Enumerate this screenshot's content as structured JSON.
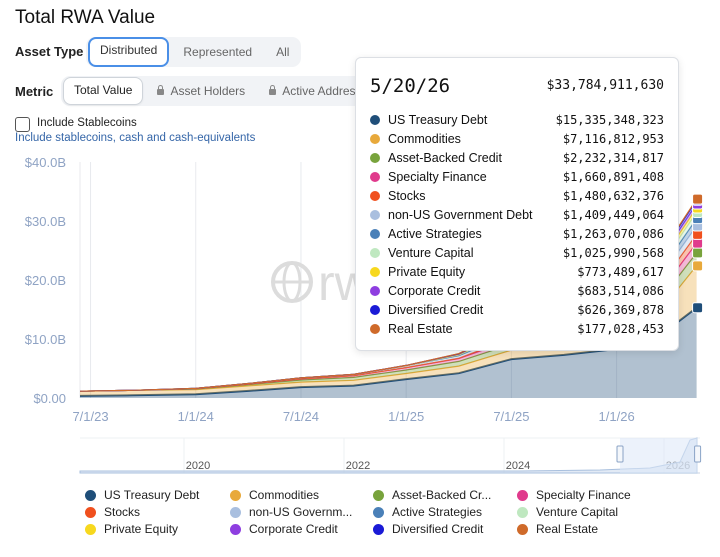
{
  "page": {
    "title": "Total RWA Value"
  },
  "asset_type": {
    "label": "Asset Type",
    "options": [
      "Distributed",
      "Represented",
      "All"
    ],
    "selected": "Distributed"
  },
  "metric": {
    "label": "Metric",
    "options": [
      "Total Value",
      "Asset Holders",
      "Active Addresses"
    ],
    "selected": "Total Value",
    "locked": [
      "Asset Holders",
      "Active Addresses"
    ]
  },
  "stablecoins": {
    "label": "Include Stablecoins",
    "description": "Include stablecoins, cash and cash-equivalents",
    "checked": false
  },
  "watermark": "rwa",
  "chart_data": {
    "type": "area",
    "stacked": true,
    "y_ticks": [
      "$0.00",
      "$10.0B",
      "$20.0B",
      "$30.0B",
      "$40.0B"
    ],
    "ylim": [
      0,
      40
    ],
    "x_ticks": [
      {
        "label": "7/1/23",
        "t": 2023.5
      },
      {
        "label": "1/1/24",
        "t": 2024.0
      },
      {
        "label": "7/1/24",
        "t": 2024.5
      },
      {
        "label": "1/1/25",
        "t": 2025.0
      },
      {
        "label": "7/1/25",
        "t": 2025.5
      },
      {
        "label": "1/1/26",
        "t": 2026.0
      }
    ],
    "xlim": [
      2023.45,
      2026.42
    ],
    "navigator": {
      "labels": [
        "2020",
        "2022",
        "2024",
        "2026"
      ],
      "range": [
        2025.45,
        2026.42
      ]
    },
    "hover_date": "5/20/26",
    "total": "$33,784,911,630",
    "grid": "vertical",
    "series": [
      {
        "name": "US Treasury Debt",
        "color": "#1f4e79",
        "tooltip": "$15,335,348,323",
        "values": [
          [
            2023.45,
            0.35
          ],
          [
            2023.7,
            0.45
          ],
          [
            2024.0,
            0.62
          ],
          [
            2024.25,
            1.2
          ],
          [
            2024.5,
            1.85
          ],
          [
            2024.75,
            2.1
          ],
          [
            2025.0,
            3.2
          ],
          [
            2025.25,
            4.2
          ],
          [
            2025.5,
            6.6
          ],
          [
            2025.75,
            7.3
          ],
          [
            2026.0,
            8.3
          ],
          [
            2026.2,
            10.4
          ],
          [
            2026.38,
            15.3
          ]
        ]
      },
      {
        "name": "Commodities",
        "color": "#e8a93b",
        "tooltip": "$7,116,812,953",
        "values": [
          [
            2023.45,
            0.8
          ],
          [
            2023.7,
            0.85
          ],
          [
            2024.0,
            0.8
          ],
          [
            2024.25,
            0.85
          ],
          [
            2024.5,
            0.85
          ],
          [
            2024.75,
            0.9
          ],
          [
            2025.0,
            0.95
          ],
          [
            2025.25,
            1.2
          ],
          [
            2025.5,
            1.5
          ],
          [
            2025.75,
            2.2
          ],
          [
            2026.0,
            3.0
          ],
          [
            2026.2,
            4.0
          ],
          [
            2026.38,
            7.1
          ]
        ]
      },
      {
        "name": "Asset-Backed Credit",
        "color": "#78a33c",
        "tooltip": "$2,232,314,817",
        "values": [
          [
            2023.45,
            0.0
          ],
          [
            2023.7,
            0.0
          ],
          [
            2024.0,
            0.1
          ],
          [
            2024.25,
            0.2
          ],
          [
            2024.5,
            0.35
          ],
          [
            2024.75,
            0.5
          ],
          [
            2025.0,
            0.6
          ],
          [
            2025.25,
            0.8
          ],
          [
            2025.5,
            1.0
          ],
          [
            2025.75,
            1.3
          ],
          [
            2026.0,
            1.6
          ],
          [
            2026.2,
            1.9
          ],
          [
            2026.38,
            2.2
          ]
        ]
      },
      {
        "name": "Specialty Finance",
        "color": "#e03a8c",
        "tooltip": "$1,660,891,408",
        "values": [
          [
            2023.45,
            0.0
          ],
          [
            2023.7,
            0.0
          ],
          [
            2024.0,
            0.05
          ],
          [
            2024.25,
            0.1
          ],
          [
            2024.5,
            0.2
          ],
          [
            2024.75,
            0.3
          ],
          [
            2025.0,
            0.4
          ],
          [
            2025.25,
            0.5
          ],
          [
            2025.5,
            0.7
          ],
          [
            2025.75,
            1.0
          ],
          [
            2026.0,
            1.2
          ],
          [
            2026.2,
            1.4
          ],
          [
            2026.38,
            1.66
          ]
        ]
      },
      {
        "name": "Stocks",
        "color": "#f0501e",
        "tooltip": "$1,480,632,376",
        "values": [
          [
            2023.45,
            0.0
          ],
          [
            2023.7,
            0.0
          ],
          [
            2024.0,
            0.0
          ],
          [
            2024.25,
            0.0
          ],
          [
            2024.5,
            0.0
          ],
          [
            2024.75,
            0.0
          ],
          [
            2025.0,
            0.02
          ],
          [
            2025.25,
            0.05
          ],
          [
            2025.5,
            0.3
          ],
          [
            2025.75,
            0.7
          ],
          [
            2026.0,
            0.9
          ],
          [
            2026.2,
            1.2
          ],
          [
            2026.38,
            1.48
          ]
        ]
      },
      {
        "name": "non-US Government Debt",
        "color": "#a9bfdf",
        "tooltip": "$1,409,449,064",
        "values": [
          [
            2023.45,
            0.0
          ],
          [
            2023.7,
            0.0
          ],
          [
            2024.0,
            0.05
          ],
          [
            2024.25,
            0.1
          ],
          [
            2024.5,
            0.15
          ],
          [
            2024.75,
            0.2
          ],
          [
            2025.0,
            0.3
          ],
          [
            2025.25,
            0.4
          ],
          [
            2025.5,
            0.6
          ],
          [
            2025.75,
            0.8
          ],
          [
            2026.0,
            1.0
          ],
          [
            2026.2,
            1.2
          ],
          [
            2026.38,
            1.41
          ]
        ]
      },
      {
        "name": "Active Strategies",
        "color": "#4a80b8",
        "tooltip": "$1,263,070,086",
        "values": [
          [
            2023.45,
            0.0
          ],
          [
            2023.7,
            0.0
          ],
          [
            2024.0,
            0.0
          ],
          [
            2024.25,
            0.0
          ],
          [
            2024.5,
            0.0
          ],
          [
            2024.75,
            0.0
          ],
          [
            2025.0,
            0.0
          ],
          [
            2025.25,
            0.05
          ],
          [
            2025.5,
            0.2
          ],
          [
            2025.75,
            0.5
          ],
          [
            2026.0,
            0.8
          ],
          [
            2026.2,
            1.0
          ],
          [
            2026.38,
            1.26
          ]
        ]
      },
      {
        "name": "Venture Capital",
        "color": "#bfe8c0",
        "tooltip": "$1,025,990,568",
        "values": [
          [
            2023.45,
            0.0
          ],
          [
            2023.7,
            0.0
          ],
          [
            2024.0,
            0.0
          ],
          [
            2024.25,
            0.0
          ],
          [
            2024.5,
            0.0
          ],
          [
            2024.75,
            0.0
          ],
          [
            2025.0,
            0.0
          ],
          [
            2025.25,
            0.1
          ],
          [
            2025.5,
            0.3
          ],
          [
            2025.75,
            0.6
          ],
          [
            2026.0,
            0.8
          ],
          [
            2026.2,
            0.9
          ],
          [
            2026.38,
            1.03
          ]
        ]
      },
      {
        "name": "Private Equity",
        "color": "#f7d81e",
        "tooltip": "$773,489,617",
        "values": [
          [
            2023.45,
            0.0
          ],
          [
            2023.7,
            0.0
          ],
          [
            2024.0,
            0.0
          ],
          [
            2024.25,
            0.0
          ],
          [
            2024.5,
            0.0
          ],
          [
            2024.75,
            0.0
          ],
          [
            2025.0,
            0.0
          ],
          [
            2025.25,
            0.05
          ],
          [
            2025.5,
            0.2
          ],
          [
            2025.75,
            0.4
          ],
          [
            2026.0,
            0.55
          ],
          [
            2026.2,
            0.65
          ],
          [
            2026.38,
            0.77
          ]
        ]
      },
      {
        "name": "Corporate Credit",
        "color": "#8e3ee0",
        "tooltip": "$683,514,086",
        "values": [
          [
            2023.45,
            0.0
          ],
          [
            2023.7,
            0.0
          ],
          [
            2024.0,
            0.0
          ],
          [
            2024.25,
            0.0
          ],
          [
            2024.5,
            0.0
          ],
          [
            2024.75,
            0.0
          ],
          [
            2025.0,
            0.05
          ],
          [
            2025.25,
            0.1
          ],
          [
            2025.5,
            0.2
          ],
          [
            2025.75,
            0.35
          ],
          [
            2026.0,
            0.5
          ],
          [
            2026.2,
            0.6
          ],
          [
            2026.38,
            0.68
          ]
        ]
      },
      {
        "name": "Diversified Credit",
        "color": "#1a1ad6",
        "tooltip": "$626,369,878",
        "values": [
          [
            2023.45,
            0.0
          ],
          [
            2023.7,
            0.0
          ],
          [
            2024.0,
            0.0
          ],
          [
            2024.25,
            0.0
          ],
          [
            2024.5,
            0.0
          ],
          [
            2024.75,
            0.0
          ],
          [
            2025.0,
            0.0
          ],
          [
            2025.25,
            0.05
          ],
          [
            2025.5,
            0.15
          ],
          [
            2025.75,
            0.3
          ],
          [
            2026.0,
            0.45
          ],
          [
            2026.2,
            0.55
          ],
          [
            2026.38,
            0.63
          ]
        ]
      },
      {
        "name": "Real Estate",
        "color": "#cf6a2a",
        "tooltip": "$177,028,453",
        "values": [
          [
            2023.45,
            0.0
          ],
          [
            2023.7,
            0.0
          ],
          [
            2024.0,
            0.0
          ],
          [
            2024.25,
            0.0
          ],
          [
            2024.5,
            0.0
          ],
          [
            2024.75,
            0.0
          ],
          [
            2025.0,
            0.0
          ],
          [
            2025.25,
            0.02
          ],
          [
            2025.5,
            0.05
          ],
          [
            2025.75,
            0.1
          ],
          [
            2026.0,
            0.13
          ],
          [
            2026.2,
            0.15
          ],
          [
            2026.38,
            0.18
          ]
        ]
      }
    ]
  },
  "legend": {
    "items": [
      {
        "label": "US Treasury Debt",
        "color": "#1f4e79"
      },
      {
        "label": "Commodities",
        "color": "#e8a93b"
      },
      {
        "label": "Asset-Backed Cr...",
        "color": "#78a33c"
      },
      {
        "label": "Specialty Finance",
        "color": "#e03a8c"
      },
      {
        "label": "Stocks",
        "color": "#f0501e"
      },
      {
        "label": "non-US Governm...",
        "color": "#a9bfdf"
      },
      {
        "label": "Active Strategies",
        "color": "#4a80b8"
      },
      {
        "label": "Venture Capital",
        "color": "#bfe8c0"
      },
      {
        "label": "Private Equity",
        "color": "#f7d81e"
      },
      {
        "label": "Corporate Credit",
        "color": "#8e3ee0"
      },
      {
        "label": "Diversified Credit",
        "color": "#1a1ad6"
      },
      {
        "label": "Real Estate",
        "color": "#cf6a2a"
      }
    ]
  }
}
